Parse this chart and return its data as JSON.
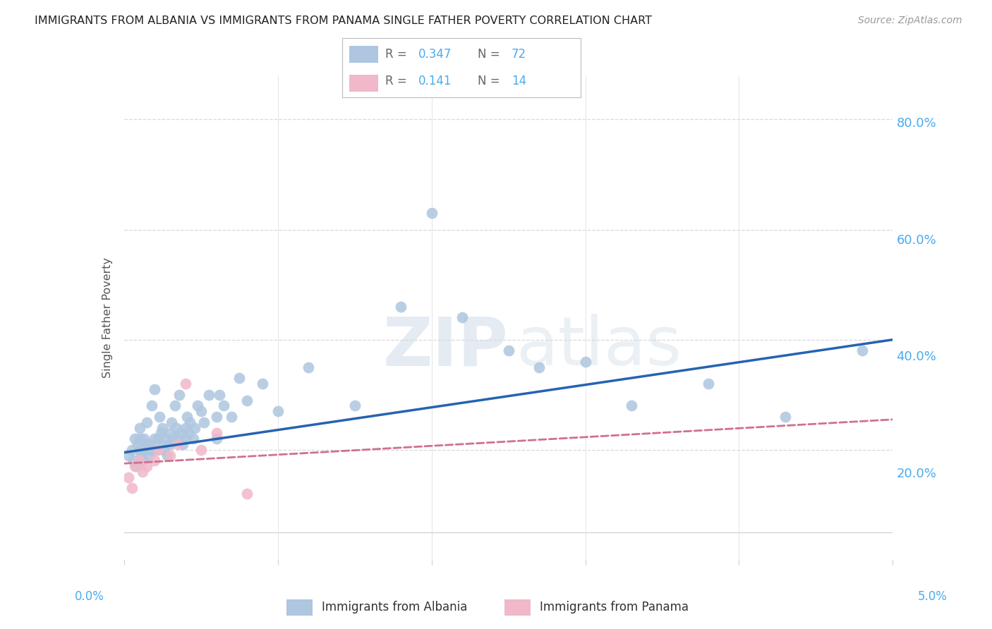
{
  "title": "IMMIGRANTS FROM ALBANIA VS IMMIGRANTS FROM PANAMA SINGLE FATHER POVERTY CORRELATION CHART",
  "source": "Source: ZipAtlas.com",
  "ylabel": "Single Father Poverty",
  "ytick_positions": [
    0.0,
    0.2,
    0.4,
    0.6,
    0.8
  ],
  "ytick_labels": [
    "",
    "20.0%",
    "40.0%",
    "60.0%",
    "80.0%"
  ],
  "xlim": [
    0.0,
    0.05
  ],
  "ylim": [
    0.05,
    0.88
  ],
  "albania_R": 0.347,
  "albania_N": 72,
  "panama_R": 0.141,
  "panama_N": 14,
  "albania_color": "#aec6df",
  "albania_line_color": "#2563b0",
  "panama_color": "#f0b8c8",
  "panama_line_color": "#d07090",
  "albania_x": [
    0.0003,
    0.0005,
    0.0006,
    0.0007,
    0.0008,
    0.0009,
    0.001,
    0.001,
    0.001,
    0.0011,
    0.0012,
    0.0013,
    0.0014,
    0.0015,
    0.0015,
    0.0016,
    0.0017,
    0.0018,
    0.0018,
    0.002,
    0.002,
    0.0021,
    0.0022,
    0.0023,
    0.0024,
    0.0025,
    0.0025,
    0.0026,
    0.0027,
    0.0028,
    0.003,
    0.003,
    0.0031,
    0.0032,
    0.0033,
    0.0034,
    0.0035,
    0.0036,
    0.0037,
    0.0038,
    0.004,
    0.004,
    0.0041,
    0.0042,
    0.0043,
    0.0045,
    0.0046,
    0.0048,
    0.005,
    0.0052,
    0.0055,
    0.006,
    0.006,
    0.0062,
    0.0065,
    0.007,
    0.0075,
    0.008,
    0.009,
    0.01,
    0.012,
    0.015,
    0.018,
    0.02,
    0.022,
    0.025,
    0.027,
    0.03,
    0.033,
    0.038,
    0.043,
    0.048
  ],
  "albania_y": [
    0.19,
    0.2,
    0.18,
    0.22,
    0.17,
    0.21,
    0.2,
    0.22,
    0.24,
    0.19,
    0.18,
    0.22,
    0.2,
    0.21,
    0.25,
    0.19,
    0.21,
    0.2,
    0.28,
    0.22,
    0.31,
    0.2,
    0.22,
    0.26,
    0.23,
    0.21,
    0.24,
    0.2,
    0.22,
    0.19,
    0.23,
    0.21,
    0.25,
    0.22,
    0.28,
    0.24,
    0.22,
    0.3,
    0.23,
    0.21,
    0.24,
    0.22,
    0.26,
    0.23,
    0.25,
    0.22,
    0.24,
    0.28,
    0.27,
    0.25,
    0.3,
    0.26,
    0.22,
    0.3,
    0.28,
    0.26,
    0.33,
    0.29,
    0.32,
    0.27,
    0.35,
    0.28,
    0.46,
    0.63,
    0.44,
    0.38,
    0.35,
    0.36,
    0.28,
    0.32,
    0.26,
    0.38
  ],
  "panama_x": [
    0.0003,
    0.0005,
    0.0007,
    0.001,
    0.0012,
    0.0015,
    0.002,
    0.0022,
    0.003,
    0.0035,
    0.004,
    0.005,
    0.006,
    0.008
  ],
  "panama_y": [
    0.15,
    0.13,
    0.17,
    0.18,
    0.16,
    0.17,
    0.18,
    0.2,
    0.19,
    0.21,
    0.32,
    0.2,
    0.23,
    0.12
  ],
  "albania_line_x": [
    0.0,
    0.05
  ],
  "albania_line_y": [
    0.195,
    0.4
  ],
  "panama_line_x": [
    0.0,
    0.05
  ],
  "panama_line_y": [
    0.175,
    0.255
  ]
}
